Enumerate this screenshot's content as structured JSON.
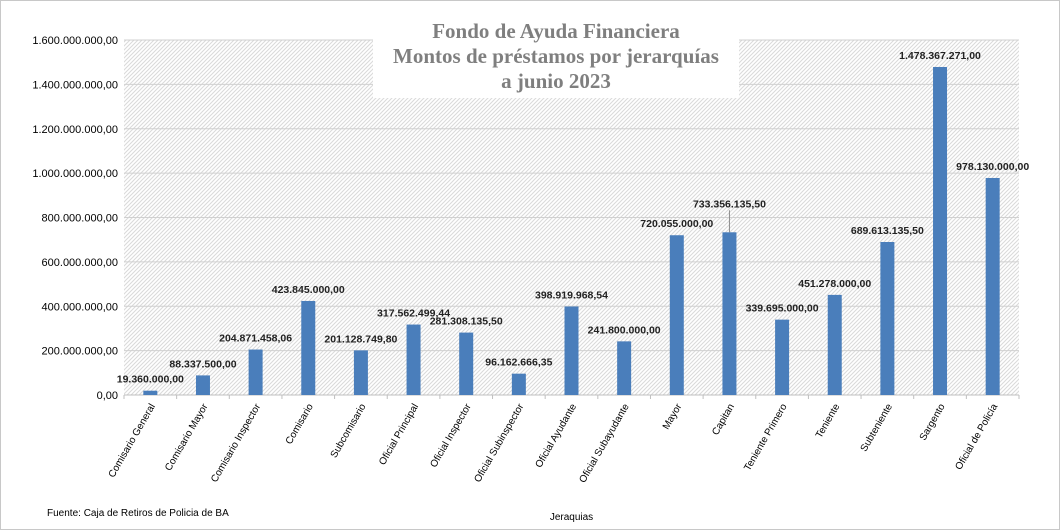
{
  "chart_data": {
    "type": "bar",
    "title_lines": [
      "Fondo de Ayuda Financiera",
      "Montos de préstamos por jerarquías",
      "a junio 2023"
    ],
    "xlabel": "Jeraquias",
    "ylabel": "",
    "ylim": [
      0,
      1600000000
    ],
    "ytick_step": 200000000,
    "yticks": [
      "0,00",
      "200.000.000,00",
      "400.000.000,00",
      "600.000.000,00",
      "800.000.000,00",
      "1.000.000.000,00",
      "1.200.000.000,00",
      "1.400.000.000,00",
      "1.600.000.000,00"
    ],
    "categories": [
      "Comisario General",
      "Comisario Mayor",
      "Comisario Inspector",
      "Comisario",
      "Subcomisario",
      "Oficial Principal",
      "Oficial Inspector",
      "Oficial Subinspector",
      "Oficial Ayudante",
      "Oficial Subayudante",
      "Mayor",
      "Capitan",
      "Teniente Primero",
      "Teniente",
      "Subteniente",
      "Sargento",
      "Oficial de Policía"
    ],
    "values": [
      19360000.0,
      88337500.0,
      204871458.06,
      423845000.0,
      201128749.8,
      317562499.44,
      281308135.5,
      96162666.35,
      398919968.54,
      241800000.0,
      720055000.0,
      733356135.5,
      339695000.0,
      451278000.0,
      689613135.5,
      1478367271.0,
      978130000.0
    ],
    "data_labels": [
      "19.360.000,00",
      "88.337.500,00",
      "204.871.458,06",
      "423.845.000,00",
      "201.128.749,80",
      "317.562.499,44",
      "281.308.135,50",
      "96.162.666,35",
      "398.919.968,54",
      "241.800.000,00",
      "720.055.000,00",
      "733.356.135,50",
      "339.695.000,00",
      "451.278.000,00",
      "689.613.135,50",
      "1.478.367.271,00",
      "978.130.000,00"
    ],
    "grid": true,
    "legend": "none",
    "bar_color": "#4a7ebb",
    "title_color": "#7f7f7f"
  },
  "source_note": "Fuente: Caja de Retiros de Policia de BA"
}
